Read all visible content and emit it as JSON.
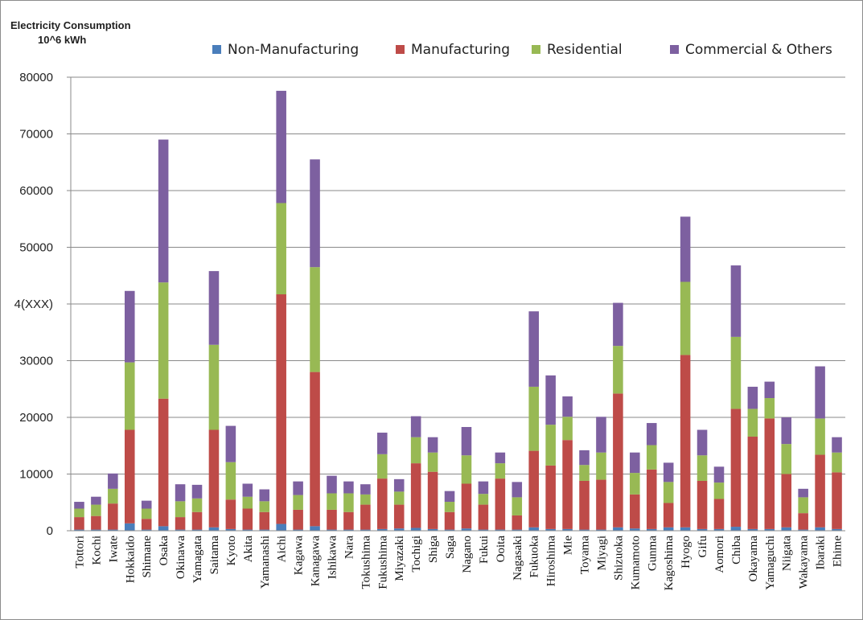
{
  "chart_data": {
    "type": "bar",
    "stacked": true,
    "ylabel_line1": "Electricity Consumption",
    "ylabel_line2": "10^6 kWh",
    "ylim": [
      0,
      80000
    ],
    "yticks": [
      0,
      10000,
      20000,
      30000,
      40000,
      50000,
      60000,
      70000,
      80000
    ],
    "ytick_labels": [
      "0",
      "10000",
      "20000",
      "30000",
      "4(XXX)",
      "50000",
      "60000",
      "70000",
      "80000"
    ],
    "grid": true,
    "legend_position": "top",
    "categories": [
      "Tottori",
      "Kochi",
      "Iwate",
      "Hokkaido",
      "Shimane",
      "Osaka",
      "Okinawa",
      "Yamagata",
      "Saitama",
      "Kyoto",
      "Akita",
      "Yamanashi",
      "Aichi",
      "Kagawa",
      "Kanagawa",
      "Ishikawa",
      "Nara",
      "Tokushima",
      "Fukushima",
      "Miyazaki",
      "Tochigi",
      "Shiga",
      "Saga",
      "Nagano",
      "Fukui",
      "Ooita",
      "Nagasaki",
      "Fukuoka",
      "Hiroshima",
      "Mie",
      "Toyama",
      "Miyagi",
      "Shizuoka",
      "Kumamoto",
      "Gunma",
      "Kagoshima",
      "Hyogo",
      "Gifu",
      "Aomori",
      "Chiba",
      "Okayama",
      "Yamaguchi",
      "Niigata",
      "Wakayama",
      "Ibaraki",
      "Ehime"
    ],
    "series": [
      {
        "name": "Non-Manufacturing",
        "color": "#4a7ebb",
        "values": [
          200,
          200,
          200,
          1300,
          200,
          800,
          200,
          200,
          600,
          300,
          200,
          200,
          1200,
          200,
          800,
          200,
          200,
          200,
          300,
          400,
          500,
          300,
          200,
          400,
          200,
          200,
          200,
          600,
          300,
          300,
          200,
          200,
          600,
          400,
          300,
          600,
          600,
          300,
          300,
          700,
          300,
          300,
          600,
          200,
          600,
          300
        ]
      },
      {
        "name": "Manufacturing",
        "color": "#be4b48",
        "values": [
          2200,
          2400,
          4600,
          16500,
          1900,
          22500,
          2200,
          3100,
          17200,
          5200,
          3700,
          3100,
          40500,
          3500,
          27200,
          3500,
          3100,
          4400,
          8900,
          4200,
          11400,
          10100,
          3100,
          7900,
          4400,
          9000,
          2500,
          13500,
          11200,
          15700,
          8600,
          8800,
          23600,
          6000,
          10500,
          4300,
          30400,
          8500,
          5300,
          20800,
          16300,
          19500,
          9400,
          2900,
          12800,
          10000
        ]
      },
      {
        "name": "Residential",
        "color": "#98b954",
        "values": [
          1500,
          2000,
          2600,
          11900,
          1800,
          20500,
          2800,
          2400,
          15000,
          6600,
          2100,
          1900,
          16100,
          2600,
          18500,
          2900,
          3300,
          1800,
          4300,
          2300,
          4600,
          3400,
          1800,
          5000,
          1900,
          2700,
          3200,
          11300,
          7200,
          4100,
          2800,
          4800,
          8400,
          3800,
          4300,
          3700,
          12900,
          4500,
          2900,
          12700,
          4900,
          3600,
          5300,
          2800,
          6400,
          3500
        ]
      },
      {
        "name": "Commercial & Others",
        "color": "#7d60a0",
        "values": [
          1200,
          1400,
          2700,
          12600,
          1400,
          25200,
          3000,
          2400,
          13000,
          6400,
          2300,
          2100,
          19800,
          2400,
          19000,
          3100,
          2100,
          1800,
          3800,
          2200,
          3700,
          2700,
          1900,
          5000,
          2200,
          1900,
          2700,
          13300,
          8700,
          3600,
          2600,
          6300,
          7600,
          3600,
          3900,
          3400,
          11500,
          4500,
          2800,
          12600,
          3900,
          2900,
          4700,
          1500,
          9200,
          2700
        ]
      }
    ]
  }
}
